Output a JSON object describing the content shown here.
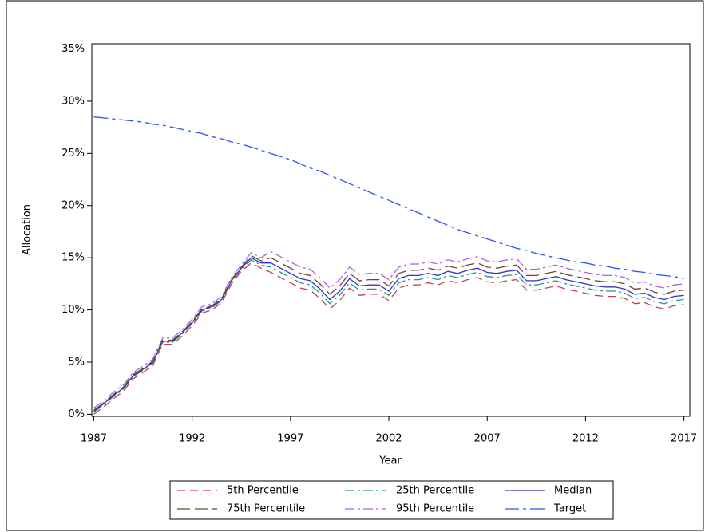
{
  "chart_data": {
    "type": "line",
    "x_label": "Year",
    "y_label": "Allocation",
    "x": [
      1987,
      1987.5,
      1988,
      1988.5,
      1989,
      1989.5,
      1990,
      1990.5,
      1991,
      1991.5,
      1992,
      1992.5,
      1993,
      1993.5,
      1994,
      1994.5,
      1995,
      1995.5,
      1996,
      1996.5,
      1997,
      1997.5,
      1998,
      1998.5,
      1999,
      1999.5,
      2000,
      2000.5,
      2001,
      2001.5,
      2002,
      2002.5,
      2003,
      2003.5,
      2004,
      2004.5,
      2005,
      2005.5,
      2006,
      2006.5,
      2007,
      2007.5,
      2008,
      2008.5,
      2009,
      2009.5,
      2010,
      2010.5,
      2011,
      2011.5,
      2012,
      2012.5,
      2013,
      2013.5,
      2014,
      2014.5,
      2015,
      2015.5,
      2016,
      2016.5,
      2017
    ],
    "series": [
      {
        "name": "5th Percentile",
        "color": "#c8404f",
        "style": "dashed",
        "values": [
          0.0,
          0.7,
          1.5,
          2.2,
          3.4,
          4.0,
          4.7,
          6.7,
          6.7,
          7.5,
          8.5,
          9.7,
          10.0,
          10.7,
          12.5,
          13.7,
          14.5,
          14.0,
          13.6,
          13.1,
          12.6,
          12.1,
          11.9,
          11.1,
          10.1,
          10.9,
          12.1,
          11.4,
          11.5,
          11.5,
          10.9,
          12.1,
          12.4,
          12.4,
          12.6,
          12.4,
          12.8,
          12.6,
          12.9,
          13.1,
          12.7,
          12.6,
          12.8,
          12.9,
          11.9,
          11.9,
          12.1,
          12.3,
          12.0,
          11.8,
          11.6,
          11.4,
          11.3,
          11.3,
          11.1,
          10.6,
          10.7,
          10.3,
          10.1,
          10.4,
          10.5
        ]
      },
      {
        "name": "25th Percentile",
        "color": "#1f9a8a",
        "style": "dashdot",
        "values": [
          0.2,
          0.9,
          1.7,
          2.4,
          3.6,
          4.2,
          4.9,
          6.9,
          6.9,
          7.7,
          8.7,
          9.9,
          10.2,
          10.9,
          12.7,
          13.9,
          14.8,
          14.3,
          14.1,
          13.6,
          13.1,
          12.6,
          12.4,
          11.6,
          10.6,
          11.4,
          12.6,
          11.9,
          12.0,
          12.0,
          11.4,
          12.6,
          12.9,
          12.9,
          13.1,
          12.9,
          13.3,
          13.1,
          13.4,
          13.6,
          13.2,
          13.1,
          13.3,
          13.4,
          12.4,
          12.4,
          12.6,
          12.8,
          12.5,
          12.3,
          12.1,
          11.9,
          11.8,
          11.8,
          11.6,
          11.1,
          11.2,
          10.8,
          10.6,
          10.9,
          11.0
        ]
      },
      {
        "name": "Median",
        "color": "#3535c8",
        "style": "solid",
        "values": [
          0.3,
          1.0,
          1.8,
          2.5,
          3.7,
          4.3,
          5.0,
          7.0,
          7.0,
          7.8,
          8.8,
          10.0,
          10.3,
          11.0,
          12.8,
          14.0,
          15.0,
          14.5,
          14.5,
          14.0,
          13.5,
          13.0,
          12.8,
          12.0,
          11.0,
          11.8,
          13.0,
          12.3,
          12.4,
          12.4,
          11.8,
          13.0,
          13.3,
          13.3,
          13.5,
          13.3,
          13.7,
          13.5,
          13.8,
          14.0,
          13.6,
          13.5,
          13.7,
          13.8,
          12.8,
          12.8,
          13.0,
          13.2,
          12.9,
          12.7,
          12.5,
          12.3,
          12.2,
          12.2,
          12.0,
          11.5,
          11.6,
          11.2,
          11.0,
          11.3,
          11.4
        ]
      },
      {
        "name": "75th Percentile",
        "color": "#6b4a2a",
        "style": "longdash",
        "values": [
          0.4,
          1.1,
          1.9,
          2.6,
          3.8,
          4.4,
          5.1,
          7.1,
          7.1,
          7.9,
          8.9,
          10.1,
          10.4,
          11.1,
          12.9,
          14.1,
          15.2,
          14.7,
          15.0,
          14.5,
          14.0,
          13.5,
          13.3,
          12.5,
          11.5,
          12.3,
          13.5,
          12.8,
          12.9,
          12.9,
          12.3,
          13.5,
          13.8,
          13.8,
          14.0,
          13.8,
          14.2,
          14.0,
          14.3,
          14.5,
          14.1,
          14.0,
          14.2,
          14.3,
          13.3,
          13.3,
          13.5,
          13.7,
          13.4,
          13.2,
          13.0,
          12.8,
          12.7,
          12.7,
          12.5,
          12.0,
          12.1,
          11.7,
          11.5,
          11.8,
          11.9
        ]
      },
      {
        "name": "95th Percentile",
        "color": "#b060e0",
        "style": "dashdot",
        "values": [
          0.6,
          1.3,
          2.1,
          2.8,
          4.0,
          4.6,
          5.3,
          7.3,
          7.3,
          8.1,
          9.1,
          10.3,
          10.6,
          11.3,
          13.1,
          14.3,
          15.5,
          15.0,
          15.6,
          15.1,
          14.6,
          14.1,
          13.9,
          13.1,
          12.1,
          12.9,
          14.1,
          13.4,
          13.5,
          13.5,
          12.9,
          14.1,
          14.4,
          14.4,
          14.6,
          14.4,
          14.8,
          14.6,
          14.9,
          15.1,
          14.7,
          14.6,
          14.8,
          14.9,
          13.9,
          13.9,
          14.1,
          14.3,
          14.0,
          13.8,
          13.6,
          13.4,
          13.3,
          13.3,
          13.1,
          12.6,
          12.7,
          12.3,
          12.1,
          12.4,
          12.5
        ]
      },
      {
        "name": "Target",
        "color": "#3050f0",
        "style": "longdashdot",
        "values": [
          28.5,
          28.4,
          28.3,
          28.2,
          28.1,
          28.0,
          27.8,
          27.7,
          27.5,
          27.3,
          27.1,
          26.9,
          26.6,
          26.4,
          26.1,
          25.9,
          25.6,
          25.3,
          25.0,
          24.7,
          24.4,
          24.0,
          23.6,
          23.3,
          22.9,
          22.5,
          22.1,
          21.7,
          21.3,
          20.9,
          20.5,
          20.1,
          19.7,
          19.3,
          18.9,
          18.5,
          18.1,
          17.7,
          17.4,
          17.1,
          16.8,
          16.5,
          16.2,
          15.9,
          15.7,
          15.4,
          15.2,
          15.0,
          14.8,
          14.6,
          14.5,
          14.3,
          14.2,
          14.0,
          13.9,
          13.7,
          13.6,
          13.4,
          13.3,
          13.2,
          13.0
        ]
      }
    ],
    "xlim": [
      1986.9,
      2017.3
    ],
    "xticks": [
      1987,
      1992,
      1997,
      2002,
      2007,
      2012,
      2017
    ],
    "ylim": [
      -0.2,
      35.5
    ],
    "yticks": [
      {
        "value": 0,
        "label": "0%"
      },
      {
        "value": 5,
        "label": "5%"
      },
      {
        "value": 10,
        "label": "10%"
      },
      {
        "value": 15,
        "label": "15%"
      },
      {
        "value": 20,
        "label": "20%"
      },
      {
        "value": 25,
        "label": "25%"
      },
      {
        "value": 30,
        "label": "30%"
      },
      {
        "value": 35,
        "label": "35%"
      }
    ],
    "legend": "bottom"
  }
}
